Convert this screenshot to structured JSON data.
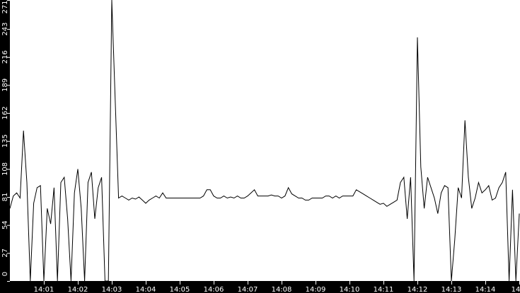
{
  "chart_data": {
    "type": "line",
    "title": "",
    "xlabel": "",
    "ylabel": "",
    "ylim": [
      0,
      271
    ],
    "xlim": [
      "14:00:00",
      "14:15:00"
    ],
    "grid": false,
    "colors": {
      "line": "#000000",
      "background": "#ffffff",
      "axis": "#000000",
      "axis_text": "#ffffff"
    },
    "y_ticks": [
      "0",
      "27",
      "54",
      "81",
      "108",
      "135",
      "162",
      "189",
      "216",
      "243",
      "271"
    ],
    "x_ticks": [
      {
        "t": "14:01:00",
        "label": "14:01"
      },
      {
        "t": "14:02:00",
        "label": "14:02"
      },
      {
        "t": "14:03:00",
        "label": "14:03"
      },
      {
        "t": "14:04:00",
        "label": "14:04"
      },
      {
        "t": "14:05:00",
        "label": "14:05"
      },
      {
        "t": "14:06:00",
        "label": "14:06"
      },
      {
        "t": "14:07:00",
        "label": "14:07"
      },
      {
        "t": "14:08:00",
        "label": "14:08"
      },
      {
        "t": "14:09:00",
        "label": "14:09"
      },
      {
        "t": "14:10:00",
        "label": "14:10"
      },
      {
        "t": "14:11:00",
        "label": "14:11"
      },
      {
        "t": "14:12:00",
        "label": "14:12"
      },
      {
        "t": "14:13:00",
        "label": "14:13"
      },
      {
        "t": "14:14:00",
        "label": "14:14"
      },
      {
        "t": "14:15:00",
        "label": "14"
      }
    ],
    "series": [
      {
        "x": [
          "14:00:00",
          "14:00:06",
          "14:00:12",
          "14:00:18",
          "14:00:24",
          "14:00:30",
          "14:00:36",
          "14:00:42",
          "14:00:48",
          "14:00:54",
          "14:01:00",
          "14:01:06",
          "14:01:12",
          "14:01:18",
          "14:01:24",
          "14:01:30",
          "14:01:36",
          "14:01:42",
          "14:01:48",
          "14:01:54",
          "14:02:00",
          "14:02:06",
          "14:02:12",
          "14:02:18",
          "14:02:24",
          "14:02:30",
          "14:02:36",
          "14:02:42",
          "14:02:48",
          "14:02:54",
          "14:03:00",
          "14:03:06",
          "14:03:12",
          "14:03:18",
          "14:03:24",
          "14:03:30",
          "14:03:36",
          "14:03:42",
          "14:03:48",
          "14:03:54",
          "14:04:00",
          "14:04:06",
          "14:04:12",
          "14:04:18",
          "14:04:24",
          "14:04:30",
          "14:04:36",
          "14:04:42",
          "14:04:48",
          "14:04:54",
          "14:05:00",
          "14:05:06",
          "14:05:12",
          "14:05:18",
          "14:05:24",
          "14:05:30",
          "14:05:36",
          "14:05:42",
          "14:05:48",
          "14:05:54",
          "14:06:00",
          "14:06:06",
          "14:06:12",
          "14:06:18",
          "14:06:24",
          "14:06:30",
          "14:06:36",
          "14:06:42",
          "14:06:48",
          "14:06:54",
          "14:07:00",
          "14:07:06",
          "14:07:12",
          "14:07:18",
          "14:07:24",
          "14:07:30",
          "14:07:36",
          "14:07:42",
          "14:07:48",
          "14:07:54",
          "14:08:00",
          "14:08:06",
          "14:08:12",
          "14:08:18",
          "14:08:24",
          "14:08:30",
          "14:08:36",
          "14:08:42",
          "14:08:48",
          "14:08:54",
          "14:09:00",
          "14:09:06",
          "14:09:12",
          "14:09:18",
          "14:09:24",
          "14:09:30",
          "14:09:36",
          "14:09:42",
          "14:09:48",
          "14:09:54",
          "14:10:00",
          "14:10:06",
          "14:10:12",
          "14:10:18",
          "14:10:24",
          "14:10:30",
          "14:10:36",
          "14:10:42",
          "14:10:48",
          "14:10:54",
          "14:11:00",
          "14:11:06",
          "14:11:12",
          "14:11:18",
          "14:11:24",
          "14:11:30",
          "14:11:36",
          "14:11:42",
          "14:11:48",
          "14:11:54",
          "14:12:00",
          "14:12:06",
          "14:12:12",
          "14:12:18",
          "14:12:24",
          "14:12:30",
          "14:12:36",
          "14:12:42",
          "14:12:48",
          "14:12:54",
          "14:13:00",
          "14:13:06",
          "14:13:12",
          "14:13:18",
          "14:13:24",
          "14:13:30",
          "14:13:36",
          "14:13:42",
          "14:13:48",
          "14:13:54",
          "14:14:00",
          "14:14:06",
          "14:14:12",
          "14:14:18",
          "14:14:24",
          "14:14:30",
          "14:14:36",
          "14:14:42",
          "14:14:48",
          "14:14:54",
          "14:15:00"
        ],
        "values": [
          70,
          82,
          85,
          80,
          145,
          95,
          0,
          75,
          90,
          92,
          0,
          70,
          55,
          90,
          0,
          95,
          100,
          60,
          0,
          85,
          108,
          70,
          0,
          95,
          105,
          60,
          90,
          100,
          0,
          0,
          271,
          175,
          80,
          82,
          80,
          78,
          80,
          79,
          81,
          78,
          75,
          78,
          80,
          82,
          80,
          85,
          80,
          80,
          80,
          80,
          80,
          80,
          80,
          80,
          80,
          80,
          80,
          82,
          88,
          88,
          82,
          80,
          80,
          82,
          80,
          81,
          80,
          82,
          80,
          80,
          82,
          85,
          88,
          82,
          82,
          82,
          82,
          83,
          82,
          82,
          80,
          82,
          90,
          84,
          82,
          80,
          80,
          78,
          78,
          80,
          80,
          80,
          80,
          82,
          82,
          80,
          82,
          80,
          82,
          82,
          82,
          82,
          88,
          86,
          84,
          82,
          80,
          78,
          76,
          74,
          75,
          72,
          74,
          76,
          78,
          95,
          100,
          60,
          100,
          0,
          235,
          110,
          70,
          100,
          90,
          80,
          65,
          85,
          92,
          90,
          0,
          40,
          90,
          80,
          155,
          100,
          70,
          80,
          95,
          85,
          88,
          92,
          78,
          80,
          90,
          95,
          105,
          0,
          88,
          0,
          65
        ]
      }
    ]
  }
}
